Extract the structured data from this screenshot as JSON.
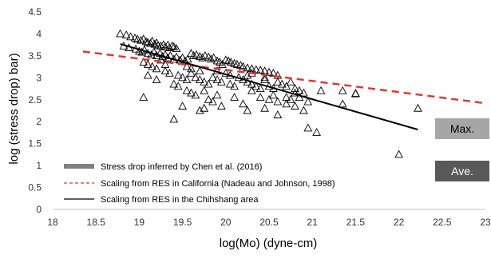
{
  "chart_data": {
    "type": "scatter",
    "xlabel": "log(Mo) (dyne-cm)",
    "ylabel": "log (stress drop) bar)",
    "xlim": [
      18,
      23
    ],
    "ylim": [
      0,
      4.5
    ],
    "x_ticks": [
      "18",
      "18.5",
      "19",
      "19.5",
      "20",
      "20.5",
      "21",
      "21.5",
      "22",
      "22.5",
      "23"
    ],
    "y_ticks": [
      "0",
      "0.5",
      "1",
      "1.5",
      "2",
      "2.5",
      "3",
      "3.5",
      "4",
      "4.5"
    ],
    "grid": false,
    "legend_position": "bottom-left",
    "legend": [
      {
        "label": "Stress drop inferred by Chen et al. (2016)",
        "style": "thick-gray-line",
        "color": "#808080"
      },
      {
        "label": "Scaling from RES in California (Nadeau and Johnson, 1998)",
        "style": "dashed",
        "color": "#e8312a"
      },
      {
        "label": "Scaling from RES in the Chihshang area",
        "style": "solid",
        "color": "#000000"
      }
    ],
    "series": [
      {
        "marker": "open-triangle",
        "points": [
          [
            18.78,
            4.0
          ],
          [
            18.85,
            3.97
          ],
          [
            18.9,
            3.93
          ],
          [
            18.95,
            3.9
          ],
          [
            18.98,
            3.87
          ],
          [
            19.02,
            3.85
          ],
          [
            19.05,
            3.88
          ],
          [
            19.08,
            3.82
          ],
          [
            19.1,
            3.8
          ],
          [
            19.13,
            3.78
          ],
          [
            19.15,
            3.83
          ],
          [
            19.18,
            3.76
          ],
          [
            19.2,
            3.79
          ],
          [
            19.22,
            3.73
          ],
          [
            19.25,
            3.72
          ],
          [
            19.28,
            3.75
          ],
          [
            19.3,
            3.7
          ],
          [
            19.33,
            3.74
          ],
          [
            19.35,
            3.68
          ],
          [
            19.38,
            3.72
          ],
          [
            19.4,
            3.7
          ],
          [
            19.43,
            3.66
          ],
          [
            18.82,
            3.72
          ],
          [
            18.88,
            3.68
          ],
          [
            18.96,
            3.65
          ],
          [
            19.0,
            3.6
          ],
          [
            19.03,
            3.58
          ],
          [
            19.06,
            3.63
          ],
          [
            19.1,
            3.55
          ],
          [
            19.14,
            3.52
          ],
          [
            19.17,
            3.58
          ],
          [
            19.2,
            3.5
          ],
          [
            19.24,
            3.55
          ],
          [
            19.27,
            3.48
          ],
          [
            19.3,
            3.52
          ],
          [
            19.33,
            3.45
          ],
          [
            19.36,
            3.5
          ],
          [
            19.4,
            3.42
          ],
          [
            19.43,
            3.47
          ],
          [
            19.47,
            3.4
          ],
          [
            19.5,
            3.45
          ],
          [
            19.53,
            3.38
          ],
          [
            19.56,
            3.42
          ],
          [
            19.6,
            3.55
          ],
          [
            19.63,
            3.5
          ],
          [
            19.66,
            3.52
          ],
          [
            19.7,
            3.48
          ],
          [
            19.73,
            3.45
          ],
          [
            19.76,
            3.5
          ],
          [
            19.8,
            3.47
          ],
          [
            19.83,
            3.42
          ],
          [
            19.86,
            3.45
          ],
          [
            19.9,
            3.38
          ],
          [
            19.93,
            3.35
          ],
          [
            19.96,
            3.3
          ],
          [
            20.0,
            3.4
          ],
          [
            20.03,
            3.38
          ],
          [
            20.06,
            3.35
          ],
          [
            20.1,
            3.32
          ],
          [
            20.13,
            3.3
          ],
          [
            20.17,
            3.28
          ],
          [
            20.2,
            3.25
          ],
          [
            20.25,
            3.22
          ],
          [
            20.3,
            3.2
          ],
          [
            20.35,
            3.18
          ],
          [
            20.4,
            3.17
          ],
          [
            20.45,
            3.15
          ],
          [
            20.5,
            3.12
          ],
          [
            20.55,
            3.1
          ],
          [
            19.05,
            3.35
          ],
          [
            19.1,
            3.3
          ],
          [
            19.15,
            3.25
          ],
          [
            19.2,
            3.2
          ],
          [
            19.3,
            3.15
          ],
          [
            19.35,
            3.1
          ],
          [
            19.45,
            3.05
          ],
          [
            19.5,
            3.0
          ],
          [
            19.55,
            2.95
          ],
          [
            19.6,
            3.1
          ],
          [
            19.65,
            3.0
          ],
          [
            19.7,
            2.95
          ],
          [
            19.75,
            2.9
          ],
          [
            19.8,
            2.85
          ],
          [
            19.85,
            3.0
          ],
          [
            19.9,
            2.95
          ],
          [
            19.95,
            2.9
          ],
          [
            20.0,
            3.1
          ],
          [
            20.05,
            2.85
          ],
          [
            20.1,
            2.8
          ],
          [
            20.15,
            3.0
          ],
          [
            20.2,
            2.95
          ],
          [
            20.25,
            2.9
          ],
          [
            20.3,
            2.85
          ],
          [
            20.35,
            2.8
          ],
          [
            20.4,
            2.75
          ],
          [
            20.45,
            2.95
          ],
          [
            20.5,
            2.8
          ],
          [
            20.55,
            2.75
          ],
          [
            20.6,
            2.9
          ],
          [
            20.65,
            2.85
          ],
          [
            20.7,
            2.8
          ],
          [
            20.75,
            2.9
          ],
          [
            20.8,
            2.75
          ],
          [
            20.85,
            2.7
          ],
          [
            20.9,
            2.65
          ],
          [
            19.1,
            3.05
          ],
          [
            19.2,
            2.95
          ],
          [
            19.4,
            2.85
          ],
          [
            19.45,
            2.8
          ],
          [
            19.55,
            2.7
          ],
          [
            19.6,
            2.65
          ],
          [
            19.65,
            2.6
          ],
          [
            19.75,
            2.7
          ],
          [
            19.8,
            2.5
          ],
          [
            19.85,
            2.45
          ],
          [
            19.9,
            2.6
          ],
          [
            20.1,
            2.55
          ],
          [
            20.2,
            2.4
          ],
          [
            20.3,
            2.7
          ],
          [
            20.4,
            2.55
          ],
          [
            20.5,
            2.5
          ],
          [
            20.55,
            2.6
          ],
          [
            20.6,
            2.45
          ],
          [
            20.7,
            2.55
          ],
          [
            20.75,
            2.5
          ],
          [
            20.8,
            2.65
          ],
          [
            20.85,
            2.55
          ],
          [
            20.95,
            2.45
          ],
          [
            21.1,
            2.7
          ],
          [
            21.35,
            2.7
          ],
          [
            21.5,
            2.64
          ],
          [
            21.5,
            2.63
          ],
          [
            21.35,
            2.4
          ],
          [
            20.7,
            2.4
          ],
          [
            20.8,
            2.35
          ],
          [
            20.9,
            2.25
          ],
          [
            20.6,
            2.15
          ],
          [
            20.45,
            2.3
          ],
          [
            20.25,
            2.25
          ],
          [
            19.7,
            2.25
          ],
          [
            19.75,
            2.3
          ],
          [
            19.95,
            2.35
          ],
          [
            19.5,
            2.35
          ],
          [
            19.05,
            2.55
          ],
          [
            19.4,
            2.05
          ],
          [
            20.95,
            1.85
          ],
          [
            21.05,
            1.75
          ],
          [
            22.0,
            1.25
          ],
          [
            22.22,
            2.3
          ],
          [
            19.3,
            3.3
          ],
          [
            19.25,
            3.4
          ],
          [
            19.55,
            3.25
          ],
          [
            19.6,
            3.2
          ],
          [
            19.7,
            3.15
          ],
          [
            19.9,
            3.15
          ],
          [
            20.05,
            3.05
          ],
          [
            20.25,
            3.05
          ],
          [
            20.3,
            3.1
          ],
          [
            20.45,
            3.0
          ],
          [
            20.6,
            3.05
          ]
        ]
      }
    ],
    "scaling_lines": [
      {
        "name": "Scaling from RES in California (Nadeau and Johnson, 1998)",
        "x": [
          18.35,
          23.0
        ],
        "y": [
          3.6,
          2.42
        ]
      },
      {
        "name": "Scaling from RES in the Chihshang area",
        "x": [
          18.78,
          22.22
        ],
        "y": [
          3.77,
          1.82
        ]
      }
    ]
  },
  "boxes": {
    "max": {
      "label": "Max.",
      "bg": "#a6a6a6",
      "text_color": "#000000"
    },
    "ave": {
      "label": "Ave.",
      "bg": "#595959",
      "text_color": "#ffffff"
    }
  },
  "colors": {
    "axis": "#bfbfbf",
    "dashed": "#e8312a",
    "solid": "#000000",
    "legend_gray": "#808080"
  }
}
